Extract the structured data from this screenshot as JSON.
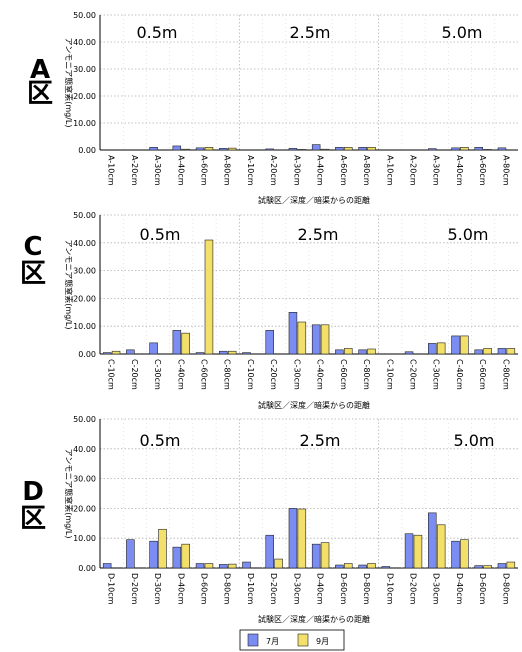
{
  "legend": [
    {
      "label": "7月",
      "color": "#7b8df2"
    },
    {
      "label": "9月",
      "color": "#f2e06a"
    }
  ],
  "chart_data": [
    {
      "type": "bar",
      "zone_label": "A\n区",
      "ylabel": "アンモニア態窒素(mg/L)",
      "xlabel": "試験区／深度／暗渠からの距離",
      "ylim": [
        0,
        50
      ],
      "yticks": [
        "0.00",
        "10.00",
        "20.00",
        "30.00",
        "40.00",
        "50.00"
      ],
      "groups": [
        "0.5m",
        "2.5m",
        "5.0m"
      ],
      "categories": [
        "A-10cm",
        "A-20cm",
        "A-30cm",
        "A-40cm",
        "A-60cm",
        "A-80cm",
        "A-10cm",
        "A-20cm",
        "A-30cm",
        "A-40cm",
        "A-60cm",
        "A-80cm",
        "A-10cm",
        "A-20cm",
        "A-30cm",
        "A-40cm",
        "A-60cm",
        "A-80cm"
      ],
      "series": [
        {
          "values": [
            0,
            0,
            1.0,
            1.5,
            0.8,
            0.6,
            0,
            0.4,
            0.6,
            2.0,
            1.0,
            1.0,
            0,
            0,
            0.5,
            0.8,
            1.0,
            0.8
          ]
        },
        {
          "values": [
            0,
            0,
            0,
            0.3,
            1.0,
            0.7,
            0,
            0,
            0.2,
            0.3,
            1.0,
            1.0,
            0,
            0,
            0,
            1.0,
            0.2,
            0
          ]
        }
      ]
    },
    {
      "type": "bar",
      "zone_label": "C\n区",
      "ylabel": "アンモニア態窒素(mg/L)",
      "xlabel": "試験区／深度／暗渠からの距離",
      "ylim": [
        0,
        50
      ],
      "yticks": [
        "0.00",
        "10.00",
        "20.00",
        "30.00",
        "40.00",
        "50.00"
      ],
      "groups": [
        "0.5m",
        "2.5m",
        "5.0m"
      ],
      "categories": [
        "C-10cm",
        "C-20cm",
        "C-30cm",
        "C-40cm",
        "C-60cm",
        "C-80cm",
        "C-10cm",
        "C-20cm",
        "C-30cm",
        "C-40cm",
        "C-60cm",
        "C-80cm",
        "C-10cm",
        "C-20cm",
        "C-30cm",
        "C-40cm",
        "C-60cm",
        "C-80cm"
      ],
      "series": [
        {
          "values": [
            0.5,
            1.5,
            4.0,
            8.5,
            0.5,
            1.0,
            0.5,
            8.5,
            15.0,
            10.5,
            1.5,
            1.5,
            0,
            0.8,
            3.8,
            6.5,
            1.5,
            2.0
          ]
        },
        {
          "values": [
            1.0,
            0,
            0,
            7.5,
            41.0,
            1.0,
            0,
            0,
            11.5,
            10.5,
            2.0,
            1.8,
            0,
            0,
            4.0,
            6.5,
            2.0,
            2.0
          ]
        }
      ]
    },
    {
      "type": "bar",
      "zone_label": "D\n区",
      "ylabel": "アンモニア態窒素(mg/L)",
      "xlabel": "試験区／深度／暗渠からの距離",
      "ylim": [
        0,
        50
      ],
      "yticks": [
        "0.00",
        "10.00",
        "20.00",
        "30.00",
        "40.00",
        "50.00"
      ],
      "groups": [
        "0.5m",
        "2.5m",
        "5.0m"
      ],
      "categories": [
        "D-10cm",
        "D-20cm",
        "D-30cm",
        "D-40cm",
        "D-60cm",
        "D-80cm",
        "D-10cm",
        "D-20cm",
        "D-30cm",
        "D-40cm",
        "D-60cm",
        "D-80cm",
        "D-10cm",
        "D-20cm",
        "D-30cm",
        "D-40cm",
        "D-60cm",
        "D-80cm"
      ],
      "series": [
        {
          "values": [
            1.5,
            9.5,
            9.0,
            7.0,
            1.5,
            1.2,
            2.0,
            11.0,
            20.0,
            8.0,
            1.0,
            1.0,
            0.5,
            11.5,
            18.5,
            9.0,
            0.8,
            1.5
          ]
        },
        {
          "values": [
            0,
            0,
            13.0,
            8.0,
            1.5,
            1.3,
            0,
            3.0,
            19.8,
            8.5,
            1.5,
            1.5,
            0,
            11.0,
            14.5,
            9.5,
            0.8,
            2.0
          ]
        }
      ]
    }
  ]
}
